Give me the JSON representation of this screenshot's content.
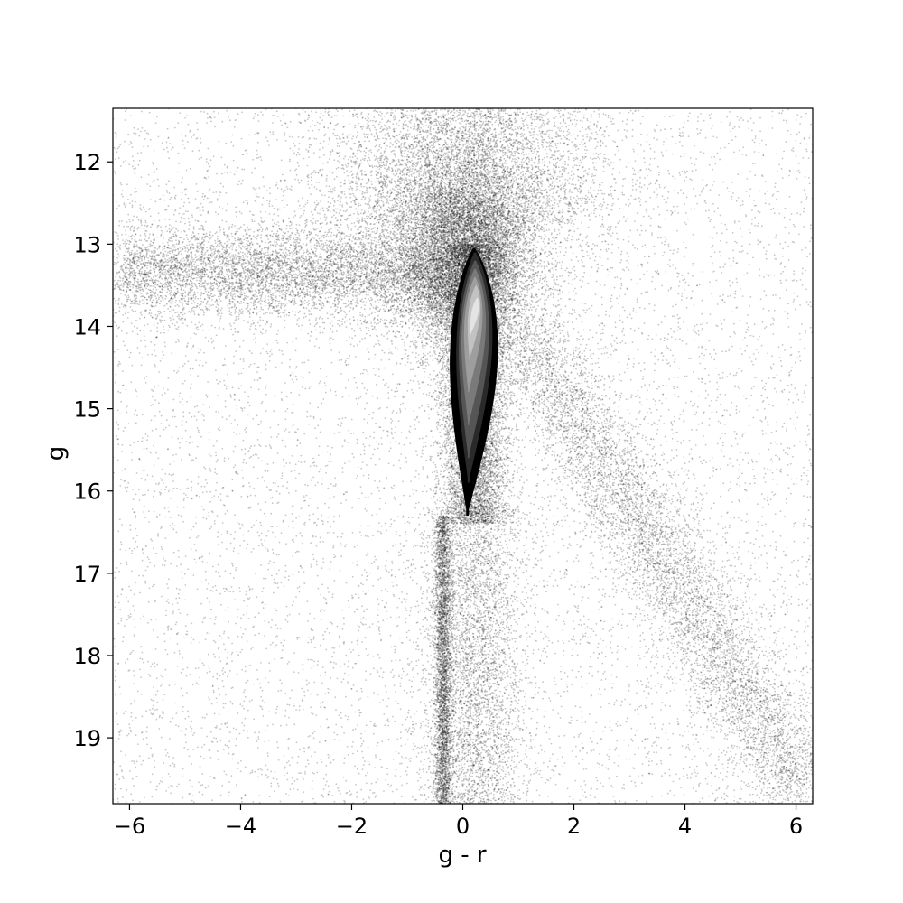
{
  "chart_data": {
    "type": "scatter",
    "title": "",
    "xlabel": "g - r",
    "ylabel": "g",
    "xlim": [
      -6.3,
      6.3
    ],
    "ylim": [
      19.8,
      11.35
    ],
    "y_inverted": true,
    "grid": false,
    "legend": "none",
    "x_ticks": [
      -6,
      -4,
      -2,
      0,
      2,
      4,
      6
    ],
    "x_tick_labels": [
      "−6",
      "−4",
      "−2",
      "0",
      "2",
      "4",
      "6"
    ],
    "y_ticks": [
      12,
      13,
      14,
      15,
      16,
      17,
      18,
      19
    ],
    "y_tick_labels": [
      "12",
      "13",
      "14",
      "15",
      "16",
      "17",
      "18",
      "19"
    ],
    "point_color": "#000000",
    "density_features": [
      {
        "name": "main-sequence-core",
        "x_center": 0.2,
        "y_range": [
          13.0,
          16.3
        ],
        "x_halfwidth": 0.45
      },
      {
        "name": "red-clump-halo",
        "x_center": 0.0,
        "y_center": 13.2,
        "x_halfwidth": 1.6
      },
      {
        "name": "horizontal-branch",
        "x_range": [
          -6.2,
          -0.5
        ],
        "y_center": 13.4
      },
      {
        "name": "blue-tail",
        "x_center": -0.35,
        "y_range": [
          16.5,
          19.8
        ]
      },
      {
        "name": "red-sequence",
        "x_range": [
          1.0,
          6.2
        ],
        "y_range": [
          14.0,
          19.8
        ]
      }
    ],
    "contour_levels": [
      {
        "level": 1,
        "x_center": 0.2,
        "y_range": [
          13.05,
          16.3
        ],
        "x_halfwidth": 0.48,
        "color": "#000000"
      },
      {
        "level": 2,
        "x_center": 0.22,
        "y_range": [
          13.1,
          15.9
        ],
        "x_halfwidth": 0.36,
        "color": "#2a2a2a"
      },
      {
        "level": 3,
        "x_center": 0.22,
        "y_range": [
          13.2,
          15.6
        ],
        "x_halfwidth": 0.3,
        "color": "#555555"
      },
      {
        "level": 4,
        "x_center": 0.22,
        "y_range": [
          13.3,
          15.2
        ],
        "x_halfwidth": 0.24,
        "color": "#7a7a7a"
      },
      {
        "level": 5,
        "x_center": 0.22,
        "y_range": [
          13.4,
          14.8
        ],
        "x_halfwidth": 0.18,
        "color": "#9e9e9e"
      },
      {
        "level": 6,
        "x_center": 0.24,
        "y_range": [
          13.5,
          14.4
        ],
        "x_halfwidth": 0.12,
        "color": "#c2c2c2"
      },
      {
        "level": 7,
        "x_center": 0.26,
        "y_range": [
          13.65,
          14.1
        ],
        "x_halfwidth": 0.07,
        "color": "#e4e4e4"
      }
    ]
  }
}
